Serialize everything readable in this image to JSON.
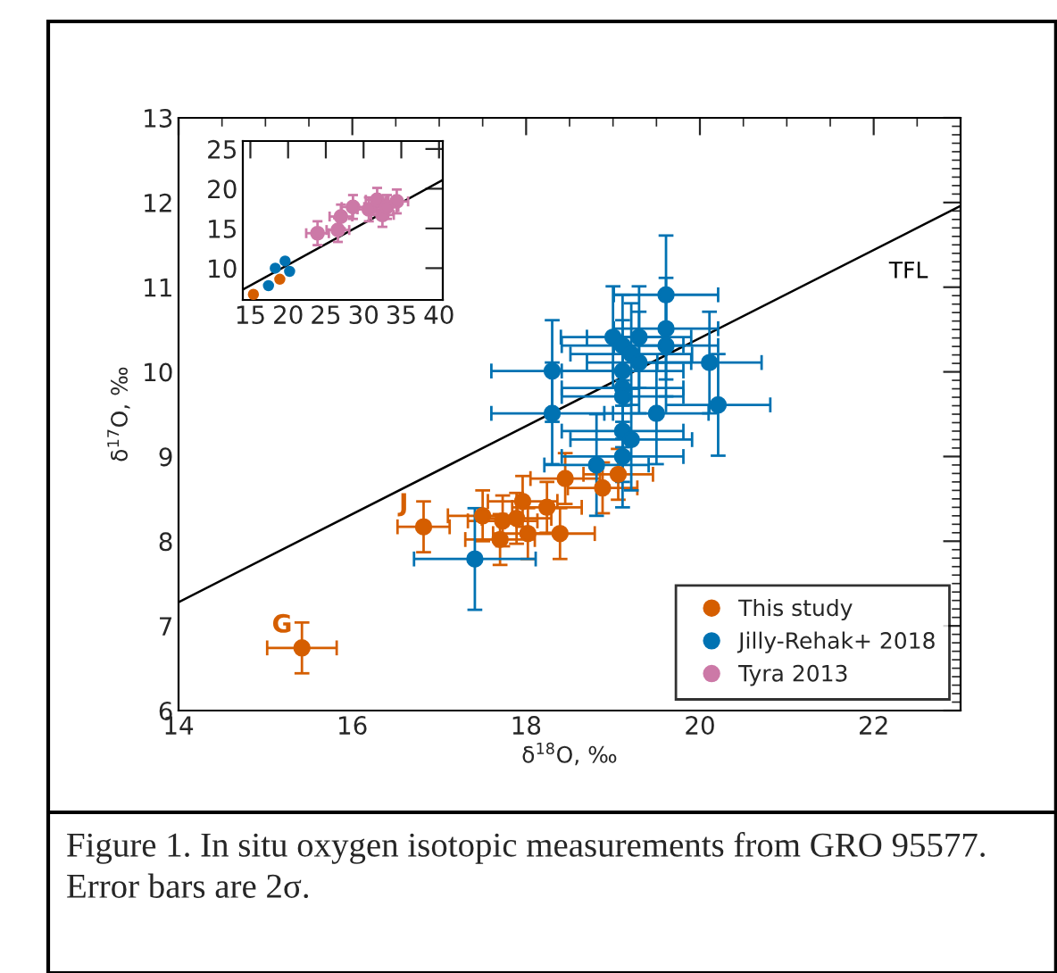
{
  "chart_data": [
    {
      "type": "scatter",
      "xlabel": "δ$^{18}$O, ‰",
      "ylabel": "δ$^{17}$O, ‰",
      "xlim": [
        14,
        23
      ],
      "ylim": [
        6,
        13
      ],
      "xticks": [
        14,
        16,
        18,
        20,
        22
      ],
      "yticks": [
        6,
        7,
        8,
        9,
        10,
        11,
        12,
        13
      ],
      "marker": "circle",
      "legend": "bottom right",
      "grid": false,
      "series": [
        {
          "name": "This study",
          "color": "#d55e00",
          "x": [
            15.42,
            16.82,
            17.5,
            17.73,
            17.7,
            17.89,
            17.96,
            18.02,
            18.24,
            18.39,
            18.45,
            18.88,
            19.06
          ],
          "values": [
            6.74,
            8.17,
            8.3,
            8.24,
            8.02,
            8.27,
            8.47,
            8.09,
            8.4,
            8.09,
            8.74,
            8.63,
            8.79
          ],
          "xerrors": [
            0.4,
            0.3,
            0.4,
            0.4,
            0.4,
            0.4,
            0.4,
            0.4,
            0.4,
            0.4,
            0.4,
            0.4,
            0.4
          ],
          "errors": [
            0.3,
            0.3,
            0.3,
            0.3,
            0.3,
            0.3,
            0.3,
            0.3,
            0.3,
            0.3,
            0.3,
            0.3,
            0.3
          ]
        },
        {
          "name": "Jilly-Rehak+ 2018",
          "color": "#0072b2",
          "x": [
            19.61,
            19.61,
            19.61,
            19.0,
            19.11,
            19.3,
            19.21,
            19.3,
            18.3,
            19.11,
            20.11,
            19.11,
            19.11,
            20.21,
            19.5,
            18.3,
            19.11,
            19.21,
            18.81,
            19.11,
            17.41
          ],
          "values": [
            10.91,
            10.51,
            10.31,
            10.41,
            10.31,
            10.41,
            10.21,
            10.11,
            10.01,
            10.01,
            10.11,
            9.81,
            9.71,
            9.61,
            9.51,
            9.51,
            9.3,
            9.2,
            8.9,
            9.0,
            7.79
          ],
          "xerrors": [
            0.6,
            0.6,
            0.6,
            0.6,
            0.7,
            0.6,
            0.7,
            0.6,
            0.7,
            0.7,
            0.6,
            0.7,
            0.7,
            0.6,
            0.6,
            0.7,
            0.7,
            0.7,
            0.6,
            0.7,
            0.7
          ],
          "errors": [
            0.7,
            0.6,
            0.6,
            0.6,
            0.6,
            0.6,
            0.6,
            0.6,
            0.6,
            0.6,
            0.6,
            0.6,
            0.6,
            0.6,
            0.6,
            0.6,
            0.6,
            0.6,
            0.6,
            0.6,
            0.6
          ]
        },
        {
          "name": "Tyra 2013",
          "color": "#cc79a7"
        },
        {
          "type": "line",
          "marker": "none",
          "color": "#000000",
          "x": [
            14,
            23
          ],
          "values": [
            7.28,
            11.96
          ]
        }
      ],
      "annotations": [
        {
          "text": "G",
          "x": 15.42,
          "y": 6.74
        },
        {
          "text": "J",
          "x": 16.82,
          "y": 8.17
        },
        {
          "text": "TFL",
          "x": 22.4,
          "y": 11.65
        },
        "Figure 1. In situ oxygen isotopic measurements from GRO 95577. Error bars are 2σ."
      ]
    },
    {
      "type": "scatter",
      "xlim": [
        14,
        40.5
      ],
      "ylim": [
        6,
        26
      ],
      "xticks": [
        15,
        20,
        25,
        30,
        35,
        40
      ],
      "yticks": [
        10,
        15,
        20,
        25
      ],
      "marker": "circle",
      "grid": false,
      "series": [
        {
          "color": "#cc79a7",
          "x": [
            23.9,
            26.6,
            27.0,
            28.6,
            30.7,
            31.8,
            32.5,
            33.1,
            34.4
          ],
          "values": [
            14.4,
            14.8,
            16.5,
            17.7,
            17.4,
            18.6,
            16.7,
            17.7,
            18.4
          ],
          "xerrors": [
            1.5,
            1.5,
            1.5,
            1.5,
            1.5,
            1.5,
            1.5,
            1.5,
            1.5
          ],
          "errors": [
            1.5,
            1.5,
            1.5,
            1.5,
            1.5,
            1.5,
            1.5,
            1.5,
            1.5
          ]
        },
        {
          "color": "#0072b2",
          "x": [
            19.6,
            20.2,
            18.3,
            17.4
          ],
          "values": [
            10.9,
            9.6,
            10.0,
            7.8
          ]
        },
        {
          "color": "#d55e00",
          "x": [
            15.4,
            18.9
          ],
          "values": [
            6.7,
            8.6
          ]
        },
        {
          "type": "line",
          "marker": "none",
          "color": "#000000",
          "x": [
            14,
            40.5
          ],
          "values": [
            7.3,
            21.1
          ]
        }
      ]
    }
  ]
}
